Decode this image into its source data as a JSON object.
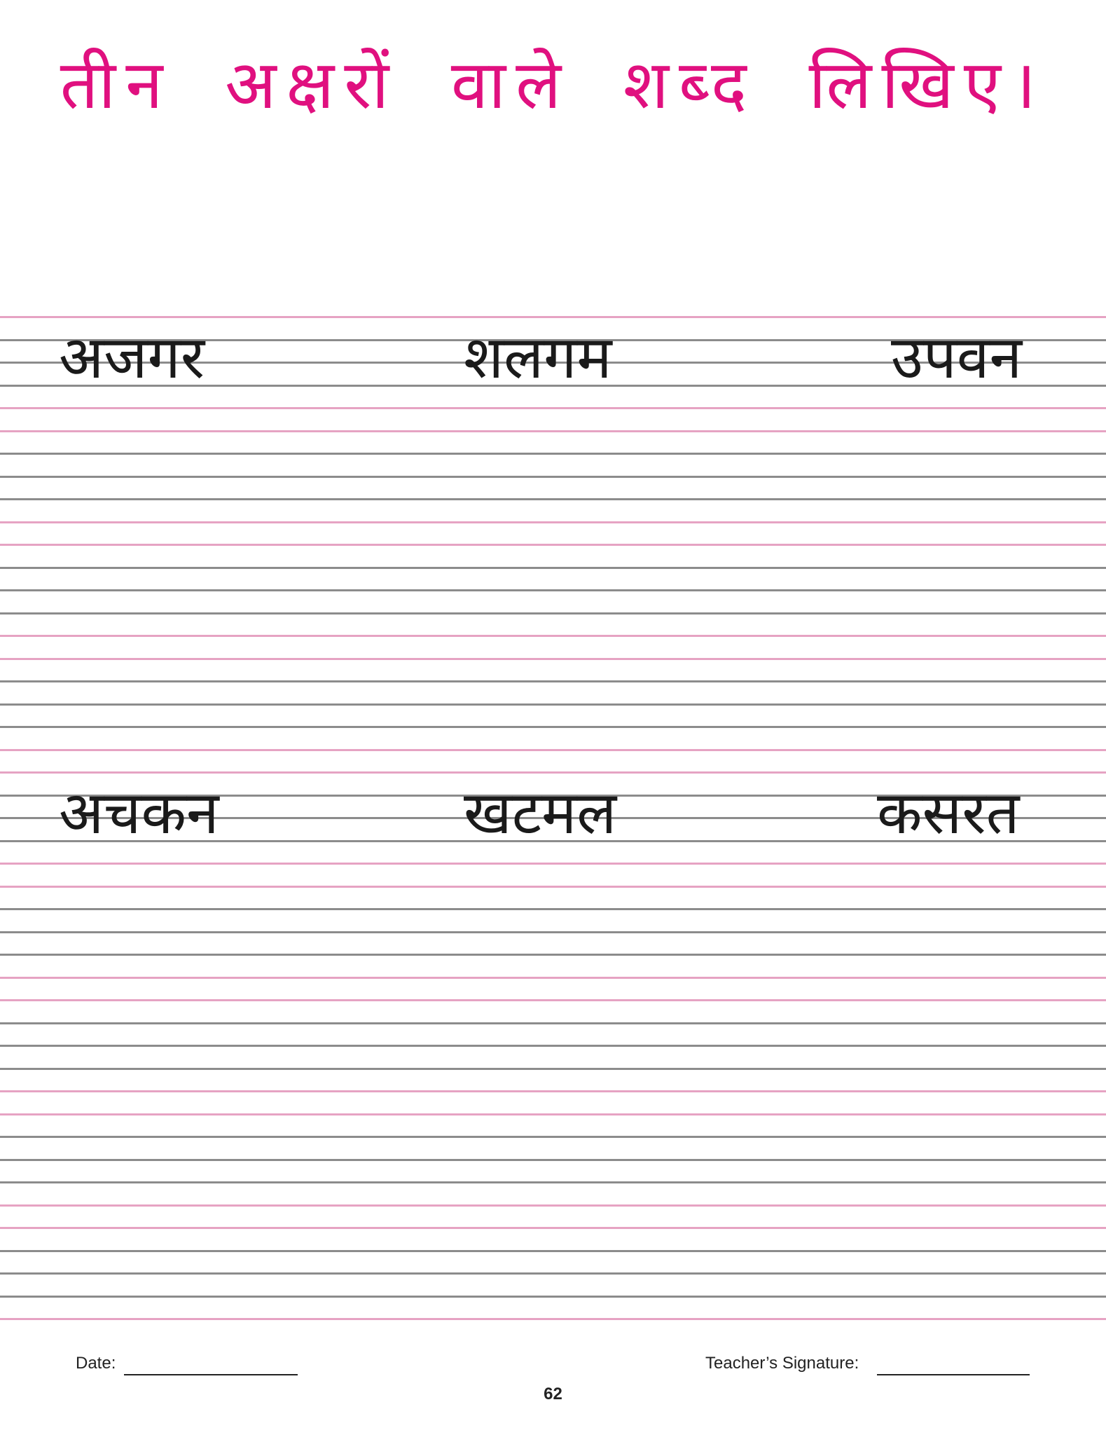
{
  "title": "तीन अक्षरों वाले शब्द लिखिए।",
  "colors": {
    "title": "#e0107f",
    "rule_pink": "#e6a3c3",
    "rule_grey": "#8c8c8c",
    "text": "#1a1a1a"
  },
  "words": {
    "row1": [
      "अजगर",
      "शलगम",
      "उपवन"
    ],
    "row2": [
      "अचकन",
      "खटमल",
      "कसरत"
    ]
  },
  "footer": {
    "date_label": "Date:",
    "signature_label": "Teacher’s Signature:",
    "page_number": "62"
  }
}
